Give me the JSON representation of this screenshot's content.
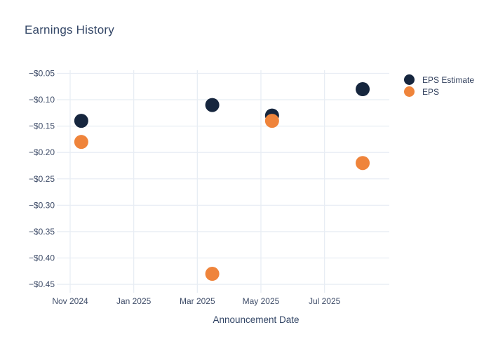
{
  "title": "Earnings History",
  "xlabel": "Announcement Date",
  "legend": {
    "items": [
      {
        "label": "EPS Estimate",
        "color": "#16263E"
      },
      {
        "label": "EPS",
        "color": "#EF843B"
      }
    ]
  },
  "colors": {
    "eps_estimate": "#16263E",
    "eps": "#EF843B",
    "gridline": "#e8edf4",
    "title_text": "#344767",
    "tick_text": "#3e4c68",
    "legend_text": "#33415e",
    "background": "#ffffff"
  },
  "chart_data": {
    "type": "scatter",
    "title": "Earnings History",
    "xlabel": "Announcement Date",
    "ylabel": "",
    "grid": true,
    "legend_position": "right",
    "marker_style": "filled-circle",
    "x_ticks": [
      {
        "label": "Nov 2024",
        "months": 0
      },
      {
        "label": "Jan 2025",
        "months": 2
      },
      {
        "label": "Mar 2025",
        "months": 4
      },
      {
        "label": "May 2025",
        "months": 6
      },
      {
        "label": "Jul 2025",
        "months": 8
      }
    ],
    "y_ticks": [
      {
        "label": "−$0.05",
        "value": -0.05
      },
      {
        "label": "−$0.10",
        "value": -0.1
      },
      {
        "label": "−$0.15",
        "value": -0.15
      },
      {
        "label": "−$0.20",
        "value": -0.2
      },
      {
        "label": "−$0.25",
        "value": -0.25
      },
      {
        "label": "−$0.30",
        "value": -0.3
      },
      {
        "label": "−$0.35",
        "value": -0.35
      },
      {
        "label": "−$0.40",
        "value": -0.4
      },
      {
        "label": "−$0.45",
        "value": -0.45
      }
    ],
    "ylim": [
      -0.47,
      -0.044
    ],
    "series": [
      {
        "name": "EPS Estimate",
        "color": "#16263E",
        "points": [
          {
            "x_months": 0.35,
            "x_approx": "mid-Nov 2024",
            "y": -0.14
          },
          {
            "x_months": 4.47,
            "x_approx": "mid-Mar 2025",
            "y": -0.11
          },
          {
            "x_months": 6.35,
            "x_approx": "mid-May 2025",
            "y": -0.13
          },
          {
            "x_months": 9.2,
            "x_approx": "early-Aug 2025",
            "y": -0.08
          }
        ]
      },
      {
        "name": "EPS",
        "color": "#EF843B",
        "points": [
          {
            "x_months": 0.35,
            "x_approx": "mid-Nov 2024",
            "y": -0.18
          },
          {
            "x_months": 4.47,
            "x_approx": "mid-Mar 2025",
            "y": -0.43
          },
          {
            "x_months": 6.35,
            "x_approx": "mid-May 2025",
            "y": -0.14
          },
          {
            "x_months": 9.2,
            "x_approx": "early-Aug 2025",
            "y": -0.22
          }
        ]
      }
    ]
  }
}
